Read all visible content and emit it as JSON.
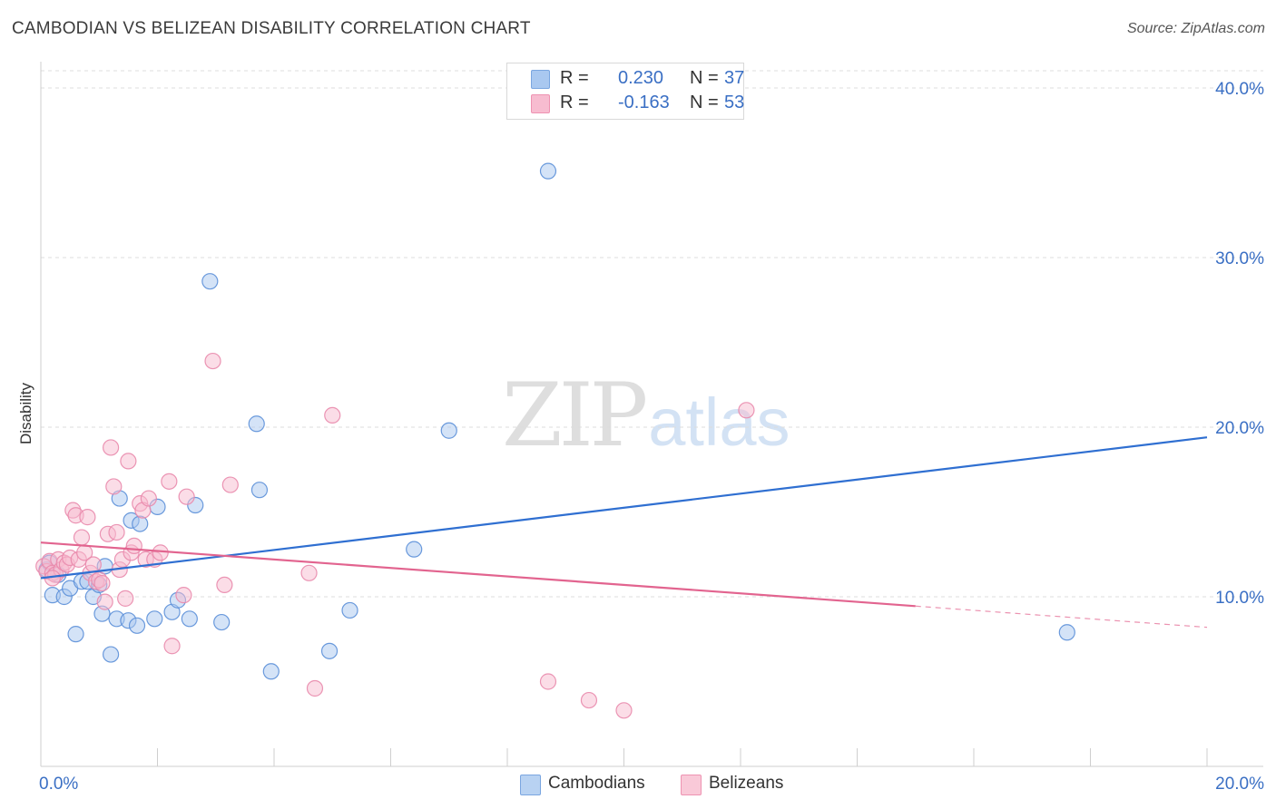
{
  "header": {
    "title": "CAMBODIAN VS BELIZEAN DISABILITY CORRELATION CHART",
    "source": "Source: ZipAtlas.com"
  },
  "watermark": {
    "zip": "ZIP",
    "atlas": "atlas"
  },
  "legend": {
    "rows": [
      {
        "r_label": "R =",
        "r_value": "0.230",
        "n_label": "N =",
        "n_value": "37",
        "color": "#a9c8f0",
        "border": "#7aa6e0"
      },
      {
        "r_label": "R =",
        "r_value": "-0.163",
        "n_label": "N =",
        "n_value": "53",
        "color": "#f7bcd0",
        "border": "#ee93b2"
      }
    ]
  },
  "bottom_legend": {
    "items": [
      {
        "label": "Cambodians",
        "color": "#b8d2f2",
        "border": "#7aa6e0"
      },
      {
        "label": "Belizeans",
        "color": "#f9c9d8",
        "border": "#ee93b2"
      }
    ]
  },
  "colors": {
    "blue_point_fill": "#a9c8f0",
    "blue_point_stroke": "#5b8fd8",
    "blue_line": "#2f6fd1",
    "pink_point_fill": "#f7bcd0",
    "pink_point_stroke": "#e98aac",
    "pink_line": "#e2648f",
    "grid": "#dcdcdc",
    "tick_text": "#3a6fc4"
  },
  "chart_data": {
    "type": "scatter",
    "title": "CAMBODIAN VS BELIZEAN DISABILITY CORRELATION CHART",
    "xlabel": "",
    "ylabel": "Disability",
    "xlim": [
      0,
      20
    ],
    "ylim": [
      0,
      40
    ],
    "x_tick_labels": [
      "0.0%",
      "20.0%"
    ],
    "y_ticks": [
      10,
      20,
      30,
      40
    ],
    "y_tick_labels": [
      "10.0%",
      "20.0%",
      "30.0%",
      "40.0%"
    ],
    "grid": true,
    "series": [
      {
        "name": "Cambodians",
        "r": 0.23,
        "n": 37,
        "trend": {
          "x0": 0,
          "y0": 11.1,
          "x1": 20,
          "y1": 19.4,
          "dashed_from": null
        },
        "points": [
          [
            0.1,
            11.6
          ],
          [
            0.2,
            10.1
          ],
          [
            0.3,
            11.3
          ],
          [
            0.4,
            10.0
          ],
          [
            0.5,
            10.5
          ],
          [
            0.6,
            7.8
          ],
          [
            0.7,
            10.9
          ],
          [
            0.8,
            10.9
          ],
          [
            0.9,
            10.0
          ],
          [
            1.0,
            10.7
          ],
          [
            1.05,
            9.0
          ],
          [
            1.1,
            11.8
          ],
          [
            1.2,
            6.6
          ],
          [
            1.3,
            8.7
          ],
          [
            1.35,
            15.8
          ],
          [
            1.5,
            8.6
          ],
          [
            1.55,
            14.5
          ],
          [
            1.65,
            8.3
          ],
          [
            1.7,
            14.3
          ],
          [
            1.95,
            8.7
          ],
          [
            2.0,
            15.3
          ],
          [
            2.25,
            9.1
          ],
          [
            2.35,
            9.8
          ],
          [
            2.55,
            8.7
          ],
          [
            2.65,
            15.4
          ],
          [
            2.9,
            28.6
          ],
          [
            3.1,
            8.5
          ],
          [
            3.7,
            20.2
          ],
          [
            3.75,
            16.3
          ],
          [
            3.95,
            5.6
          ],
          [
            4.95,
            6.8
          ],
          [
            5.3,
            9.2
          ],
          [
            6.4,
            12.8
          ],
          [
            7.0,
            19.8
          ],
          [
            8.7,
            35.1
          ],
          [
            17.6,
            7.9
          ],
          [
            0.15,
            12.0
          ]
        ]
      },
      {
        "name": "Belizeans",
        "r": -0.163,
        "n": 53,
        "trend": {
          "x0": 0,
          "y0": 13.2,
          "x1": 20,
          "y1": 8.2,
          "dashed_from": 15.0
        },
        "points": [
          [
            0.05,
            11.8
          ],
          [
            0.1,
            11.5
          ],
          [
            0.15,
            12.1
          ],
          [
            0.2,
            11.4
          ],
          [
            0.25,
            11.3
          ],
          [
            0.3,
            12.2
          ],
          [
            0.35,
            11.6
          ],
          [
            0.4,
            12.0
          ],
          [
            0.45,
            11.9
          ],
          [
            0.5,
            12.3
          ],
          [
            0.55,
            15.1
          ],
          [
            0.6,
            14.8
          ],
          [
            0.65,
            12.2
          ],
          [
            0.7,
            13.5
          ],
          [
            0.75,
            12.6
          ],
          [
            0.8,
            14.7
          ],
          [
            0.85,
            11.4
          ],
          [
            0.9,
            11.9
          ],
          [
            0.95,
            10.9
          ],
          [
            1.0,
            11.0
          ],
          [
            1.05,
            10.8
          ],
          [
            1.1,
            9.7
          ],
          [
            1.15,
            13.7
          ],
          [
            1.2,
            18.8
          ],
          [
            1.25,
            16.5
          ],
          [
            1.3,
            13.8
          ],
          [
            1.35,
            11.6
          ],
          [
            1.4,
            12.2
          ],
          [
            1.45,
            9.9
          ],
          [
            1.5,
            18.0
          ],
          [
            1.55,
            12.6
          ],
          [
            1.6,
            13.0
          ],
          [
            1.7,
            15.5
          ],
          [
            1.75,
            15.1
          ],
          [
            1.8,
            12.2
          ],
          [
            1.85,
            15.8
          ],
          [
            1.95,
            12.2
          ],
          [
            2.05,
            12.6
          ],
          [
            2.2,
            16.8
          ],
          [
            2.25,
            7.1
          ],
          [
            2.45,
            10.1
          ],
          [
            2.5,
            15.9
          ],
          [
            2.95,
            23.9
          ],
          [
            3.15,
            10.7
          ],
          [
            3.25,
            16.6
          ],
          [
            4.6,
            11.4
          ],
          [
            4.7,
            4.6
          ],
          [
            5.0,
            20.7
          ],
          [
            8.7,
            5.0
          ],
          [
            9.4,
            3.9
          ],
          [
            10.0,
            3.3
          ],
          [
            12.1,
            21.0
          ],
          [
            0.2,
            11.1
          ]
        ]
      }
    ]
  }
}
